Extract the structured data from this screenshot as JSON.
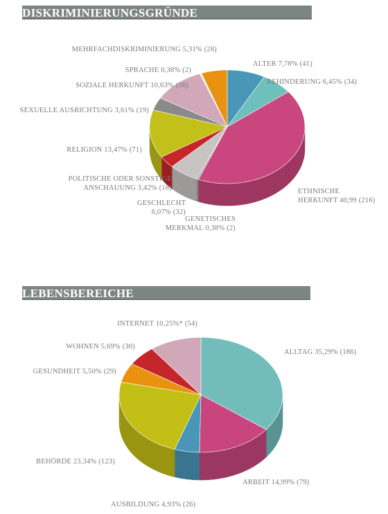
{
  "chart_data": [
    {
      "type": "pie",
      "title": "DISKRIMINIERUNGSGRÜNDE",
      "categories": [
        "ALTER",
        "BEHINDERUNG",
        "ETHNISCHE HERKUNFT",
        "GENETISCHES MERKMAL",
        "GESCHLECHT",
        "POLITISCHE ODER SONSTIGE ANSCHAUUNG",
        "RELIGION",
        "SEXUELLE AUSRICHTUNG",
        "SOZIALE HERKUNFT",
        "SPRACHE",
        "MEHRFACHDISKRIMINIERUNG"
      ],
      "values": [
        7.78,
        6.45,
        40.99,
        0.38,
        6.07,
        3.42,
        13.47,
        3.61,
        10.63,
        0.38,
        5.31
      ],
      "value_labels": [
        "7,78%",
        "6,45%",
        "40,99",
        "0,38%",
        "6,07%",
        "3,42%",
        "13,47%",
        "3,61%",
        "10,63%",
        "0,38%",
        "5,31%"
      ],
      "counts": [
        41,
        34,
        216,
        2,
        32,
        18,
        71,
        19,
        56,
        2,
        28
      ],
      "count_labels": [
        "(41)",
        "(34)",
        "(216)",
        "(2)",
        "(32)",
        "(18)",
        "(71)",
        "(19)",
        "(56)",
        "(2)",
        "(28)"
      ],
      "colors": [
        "#4a96b8",
        "#6fbfbd",
        "#c9477e",
        "#a8a2a2",
        "#c8c4c4",
        "#c4262a",
        "#c4c01a",
        "#8a8a8a",
        "#d1a8b8",
        "#f0eeee",
        "#e8920f"
      ]
    },
    {
      "type": "pie",
      "title": "LEBENSBEREICHE",
      "categories": [
        "ALLTAG",
        "ARBEIT",
        "AUSBILDUNG",
        "BEHÖRDE",
        "GESUNDHEIT",
        "WOHNEN",
        "INTERNET"
      ],
      "values": [
        35.29,
        14.99,
        4.93,
        23.34,
        5.5,
        5.69,
        10.25
      ],
      "value_labels": [
        "35,29%",
        "14,99%",
        "4,93%",
        "23,34%",
        "5,50%",
        "5,69%",
        "10,25%*"
      ],
      "counts": [
        186,
        79,
        26,
        123,
        29,
        30,
        54
      ],
      "count_labels": [
        "(186)",
        "(79)",
        "(26)",
        "(123)",
        "(29)",
        "(30)",
        "(54)"
      ],
      "colors": [
        "#72bdbc",
        "#c8457e",
        "#4a96b8",
        "#c4bf16",
        "#e8920f",
        "#c4262a",
        "#d1a8b8"
      ]
    }
  ]
}
